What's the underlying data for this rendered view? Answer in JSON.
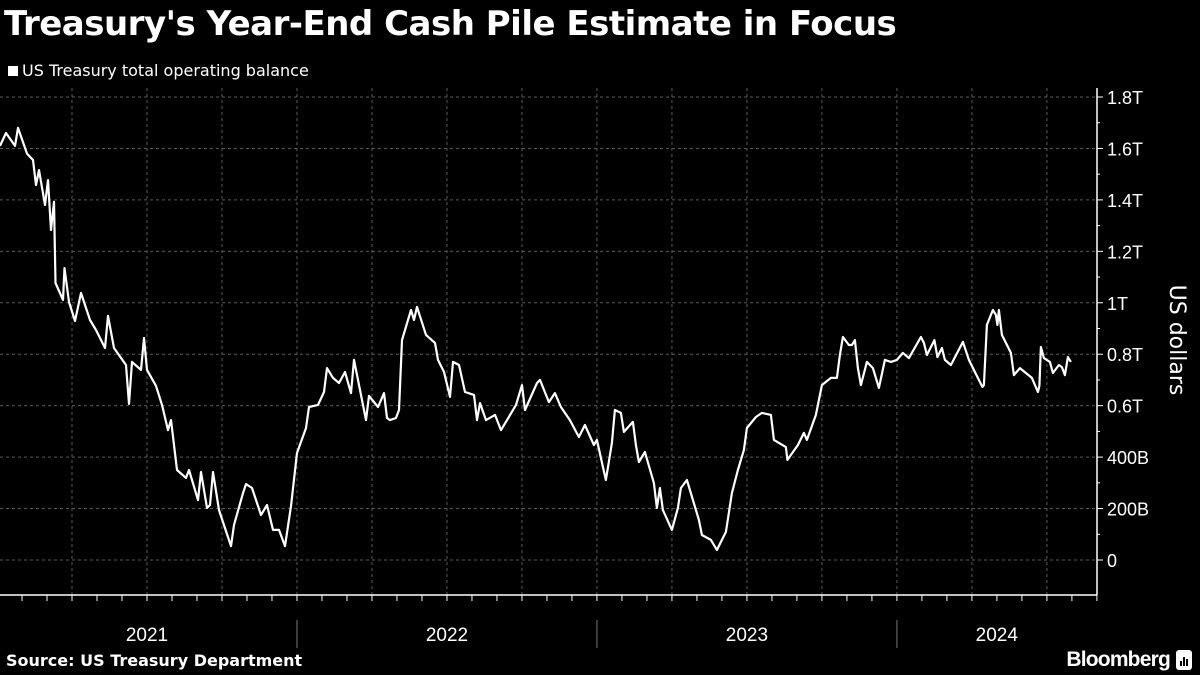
{
  "title": "Treasury's Year-End Cash Pile Estimate in Focus",
  "source": "Source: US Treasury Department",
  "brand": "Bloomberg",
  "colors": {
    "background": "#000000",
    "line": "#ffffff",
    "grid": "#5a5a5a"
  },
  "chart_data": {
    "type": "line",
    "title": "Treasury's Year-End Cash Pile Estimate in Focus",
    "ylabel": "US dollars",
    "xlabel": "",
    "ylim": [
      0,
      1800
    ],
    "xlim": [
      2021.0,
      2024.667
    ],
    "y_unit": "billions USD",
    "x_unit": "fractional year",
    "yticks": [
      {
        "value": 0,
        "label": "0"
      },
      {
        "value": 200,
        "label": "200B"
      },
      {
        "value": 400,
        "label": "400B"
      },
      {
        "value": 600,
        "label": "0.6T"
      },
      {
        "value": 800,
        "label": "0.8T"
      },
      {
        "value": 1000,
        "label": "1T"
      },
      {
        "value": 1200,
        "label": "1.2T"
      },
      {
        "value": 1400,
        "label": "1.4T"
      },
      {
        "value": 1600,
        "label": "1.6T"
      },
      {
        "value": 1800,
        "label": "1.8T"
      }
    ],
    "xticks": [
      {
        "value": 2021.5,
        "label": "2021"
      },
      {
        "value": 2022.5,
        "label": "2022"
      },
      {
        "value": 2023.5,
        "label": "2023"
      },
      {
        "value": 2024.333,
        "label": "2024"
      }
    ],
    "grid": true,
    "legend": {
      "position": "top-left",
      "entries": [
        "US Treasury total operating balance"
      ]
    },
    "series": [
      {
        "name": "US Treasury total operating balance",
        "x": [
          2021.01,
          2021.03,
          2021.06,
          2021.07,
          2021.1,
          2021.12,
          2021.13,
          2021.14,
          2021.16,
          2021.17,
          2021.18,
          2021.19,
          2021.195,
          2021.22,
          2021.225,
          2021.24,
          2021.26,
          2021.28,
          2021.31,
          2021.33,
          2021.36,
          2021.37,
          2021.39,
          2021.43,
          2021.44,
          2021.45,
          2021.48,
          2021.49,
          2021.5,
          2021.53,
          2021.55,
          2021.57,
          2021.58,
          2021.59,
          2021.6,
          2021.63,
          2021.64,
          2021.67,
          2021.68,
          2021.7,
          2021.71,
          2021.72,
          2021.74,
          2021.76,
          2021.78,
          2021.79,
          2021.82,
          2021.83,
          2021.85,
          2021.88,
          2021.9,
          2021.92,
          2021.94,
          2021.96,
          2021.98,
          2022.0,
          2022.03,
          2022.04,
          2022.07,
          2022.09,
          2022.1,
          2022.12,
          2022.14,
          2022.16,
          2022.18,
          2022.19,
          2022.21,
          2022.23,
          2022.24,
          2022.27,
          2022.29,
          2022.3,
          2022.31,
          2022.33,
          2022.34,
          2022.35,
          2022.38,
          2022.39,
          2022.4,
          2022.43,
          2022.46,
          2022.47,
          2022.49,
          2022.51,
          2022.52,
          2022.54,
          2022.56,
          2022.59,
          2022.6,
          2022.61,
          2022.63,
          2022.66,
          2022.68,
          2022.7,
          2022.73,
          2022.75,
          2022.76,
          2022.8,
          2022.81,
          2022.84,
          2022.86,
          2022.88,
          2022.91,
          2022.94,
          2022.96,
          2022.99,
          2023.0,
          2023.02,
          2023.03,
          2023.05,
          2023.06,
          2023.08,
          2023.09,
          2023.12,
          2023.13,
          2023.14,
          2023.16,
          2023.19,
          2023.2,
          2023.21,
          2023.22,
          2023.25,
          2023.27,
          2023.28,
          2023.3,
          2023.31,
          2023.34,
          2023.35,
          2023.38,
          2023.4,
          2023.42,
          2023.43,
          2023.45,
          2023.47,
          2023.49,
          2023.5,
          2023.53,
          2023.55,
          2023.58,
          2023.59,
          2023.63,
          2023.635,
          2023.67,
          2023.69,
          2023.7,
          2023.73,
          2023.75,
          2023.78,
          2023.8,
          2023.81,
          2023.82,
          2023.84,
          2023.85,
          2023.86,
          2023.87,
          2023.88,
          2023.9,
          2023.92,
          2023.94,
          2023.96,
          2023.98,
          2024.0,
          2024.02,
          2024.04,
          2024.08,
          2024.09,
          2024.1,
          2024.125,
          2024.135,
          2024.15,
          2024.16,
          2024.18,
          2024.22,
          2024.24,
          2024.26,
          2024.285,
          2024.29,
          2024.3,
          2024.32,
          2024.33,
          2024.335,
          2024.34,
          2024.35,
          2024.38,
          2024.39,
          2024.41,
          2024.43,
          2024.45,
          2024.47,
          2024.475,
          2024.48,
          2024.49,
          2024.51,
          2024.52,
          2024.54,
          2024.55,
          2024.56,
          2024.57,
          2024.58
        ],
        "y": [
          1610,
          1660,
          1610,
          1680,
          1580,
          1555,
          1458,
          1516,
          1380,
          1477,
          1283,
          1392,
          1077,
          1011,
          1135,
          1003,
          929,
          1038,
          933,
          894,
          824,
          949,
          824,
          758,
          607,
          770,
          739,
          863,
          739,
          677,
          603,
          505,
          544,
          447,
          350,
          319,
          350,
          233,
          342,
          202,
          214,
          342,
          194,
          124,
          54,
          136,
          260,
          295,
          280,
          175,
          214,
          117,
          117,
          54,
          210,
          416,
          513,
          595,
          603,
          653,
          746,
          708,
          688,
          731,
          649,
          778,
          661,
          544,
          638,
          595,
          649,
          552,
          544,
          552,
          583,
          855,
          972,
          933,
          984,
          875,
          844,
          778,
          731,
          634,
          770,
          758,
          653,
          642,
          544,
          610,
          544,
          564,
          505,
          544,
          603,
          680,
          583,
          688,
          700,
          614,
          649,
          595,
          544,
          478,
          525,
          447,
          467,
          362,
          311,
          455,
          583,
          572,
          498,
          537,
          447,
          381,
          420,
          299,
          202,
          280,
          194,
          117,
          202,
          280,
          311,
          272,
          156,
          97,
          78,
          39,
          86,
          109,
          260,
          350,
          428,
          513,
          556,
          572,
          564,
          467,
          439,
          389,
          447,
          494,
          467,
          564,
          680,
          708,
          708,
          797,
          867,
          836,
          836,
          855,
          746,
          680,
          770,
          746,
          669,
          778,
          770,
          778,
          805,
          785,
          867,
          844,
          797,
          855,
          789,
          824,
          778,
          758,
          848,
          778,
          731,
          673,
          680,
          914,
          972,
          953,
          914,
          972,
          875,
          805,
          719,
          746,
          727,
          708,
          653,
          677,
          828,
          785,
          770,
          727,
          758,
          750,
          719,
          789,
          770
        ]
      }
    ]
  }
}
